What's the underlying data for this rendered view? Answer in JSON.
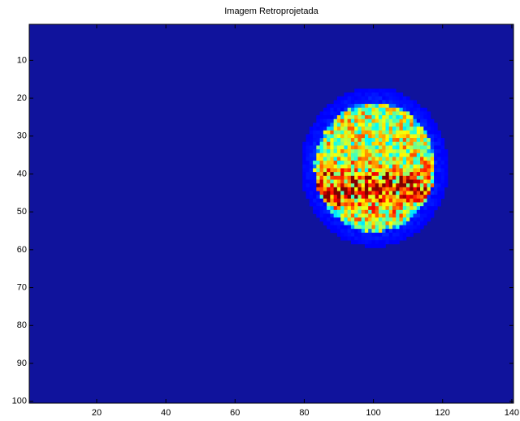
{
  "chart_data": {
    "type": "image",
    "title": "Imagem Retroprojetada",
    "xlim": [
      0.5,
      140.5
    ],
    "xticks": [
      20,
      40,
      60,
      80,
      100,
      120,
      140
    ],
    "ylim": [
      0.5,
      100.5
    ],
    "yticks": [
      10,
      20,
      30,
      40,
      50,
      60,
      70,
      80,
      90,
      100
    ],
    "y_reversed": true,
    "background_color": "#10139c"
  }
}
